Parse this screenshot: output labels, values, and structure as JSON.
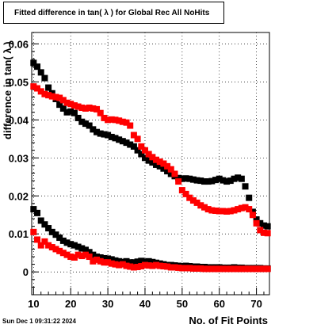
{
  "title": "Fitted difference in tan( λ ) for Global Rec All NoHits",
  "footer_date": "Sun Dec  1 09:31:22 2024",
  "chart_data": {
    "type": "scatter",
    "title": "Fitted difference in tan( λ ) for Global Rec All NoHits",
    "xlabel": "No. of Fit Points",
    "ylabel": "difference in tan( λ )",
    "xlim": [
      9.5,
      73.5
    ],
    "ylim": [
      -0.006,
      0.063
    ],
    "xticks": [
      10,
      20,
      30,
      40,
      50,
      60,
      70
    ],
    "yticks": [
      0,
      0.01,
      0.02,
      0.03,
      0.04,
      0.05,
      0.06
    ],
    "ytick_labels": [
      "0",
      "0.01",
      "0.02",
      "0.03",
      "0.04",
      "0.05",
      "0.06"
    ],
    "grid": true,
    "legend": "none",
    "series": [
      {
        "color": "#000000",
        "marker": "square",
        "x": [
          10,
          11,
          12,
          13,
          14,
          15,
          16,
          17,
          18,
          19,
          20,
          21,
          22,
          23,
          24,
          25,
          26,
          27,
          28,
          29,
          30,
          31,
          32,
          33,
          34,
          35,
          36,
          37,
          38,
          39,
          40,
          41,
          42,
          43,
          44,
          45,
          46,
          47,
          48,
          49,
          50,
          51,
          52,
          53,
          54,
          55,
          56,
          57,
          58,
          59,
          60,
          61,
          62,
          63,
          64,
          65,
          66,
          67,
          68,
          69,
          70,
          71,
          72,
          73
        ],
        "y": [
          0.055,
          0.054,
          0.0525,
          0.051,
          0.0485,
          0.047,
          0.0455,
          0.044,
          0.043,
          0.042,
          0.0422,
          0.0418,
          0.0405,
          0.0395,
          0.039,
          0.0385,
          0.0375,
          0.0368,
          0.0364,
          0.0362,
          0.036,
          0.0355,
          0.0352,
          0.0348,
          0.0344,
          0.034,
          0.0335,
          0.033,
          0.032,
          0.031,
          0.03,
          0.0293,
          0.0288,
          0.0282,
          0.0278,
          0.0272,
          0.0265,
          0.0258,
          0.0252,
          0.0247,
          0.0245,
          0.0246,
          0.0245,
          0.0243,
          0.0241,
          0.024,
          0.0238,
          0.0238,
          0.0239,
          0.0242,
          0.0245,
          0.0241,
          0.0238,
          0.024,
          0.0245,
          0.0248,
          0.0245,
          0.0225,
          0.0195,
          0.0158,
          0.0138,
          0.0128,
          0.0122,
          0.012
        ]
      },
      {
        "color": "#ff0000",
        "marker": "square",
        "x": [
          10,
          11,
          12,
          13,
          14,
          15,
          16,
          17,
          18,
          19,
          20,
          21,
          22,
          23,
          24,
          25,
          26,
          27,
          28,
          29,
          30,
          31,
          32,
          33,
          34,
          35,
          36,
          37,
          38,
          39,
          40,
          41,
          42,
          43,
          44,
          45,
          46,
          47,
          48,
          49,
          50,
          51,
          52,
          53,
          54,
          55,
          56,
          57,
          58,
          59,
          60,
          61,
          62,
          63,
          64,
          65,
          66,
          67,
          68,
          69,
          70,
          71,
          72,
          73
        ],
        "y": [
          0.0488,
          0.0483,
          0.0475,
          0.0468,
          0.0465,
          0.0462,
          0.046,
          0.0458,
          0.0452,
          0.0445,
          0.0442,
          0.0438,
          0.0435,
          0.0432,
          0.043,
          0.0432,
          0.043,
          0.0428,
          0.0418,
          0.0405,
          0.04,
          0.0401,
          0.04,
          0.0398,
          0.0395,
          0.0393,
          0.0385,
          0.036,
          0.035,
          0.033,
          0.032,
          0.031,
          0.0302,
          0.0295,
          0.029,
          0.0285,
          0.0278,
          0.027,
          0.0258,
          0.0238,
          0.0215,
          0.0205,
          0.0195,
          0.0188,
          0.0182,
          0.0175,
          0.017,
          0.0165,
          0.0162,
          0.0161,
          0.016,
          0.016,
          0.0159,
          0.016,
          0.0162,
          0.0165,
          0.0168,
          0.017,
          0.0165,
          0.015,
          0.0128,
          0.011,
          0.0103,
          0.0102
        ]
      },
      {
        "color": "#000000",
        "marker": "square",
        "x": [
          10,
          11,
          12,
          13,
          14,
          15,
          16,
          17,
          18,
          19,
          20,
          21,
          22,
          23,
          24,
          25,
          26,
          27,
          28,
          29,
          30,
          31,
          32,
          33,
          34,
          35,
          36,
          37,
          38,
          39,
          40,
          41,
          42,
          43,
          44,
          45,
          46,
          47,
          48,
          49,
          50,
          51,
          52,
          53,
          54,
          55,
          56,
          57,
          58,
          59,
          60,
          61,
          62,
          63,
          64,
          65,
          66,
          67,
          68,
          69,
          70,
          71,
          72,
          73
        ],
        "y": [
          0.0165,
          0.0155,
          0.0135,
          0.0125,
          0.0115,
          0.0105,
          0.0098,
          0.009,
          0.0082,
          0.0077,
          0.0073,
          0.007,
          0.0066,
          0.0062,
          0.0058,
          0.0052,
          0.0045,
          0.004,
          0.0038,
          0.0036,
          0.0035,
          0.0033,
          0.003,
          0.0028,
          0.0026,
          0.0028,
          0.0025,
          0.0025,
          0.0027,
          0.0029,
          0.0027,
          0.0028,
          0.0026,
          0.0024,
          0.0022,
          0.002,
          0.0018,
          0.0018,
          0.0017,
          0.0016,
          0.0015,
          0.0016,
          0.0015,
          0.0014,
          0.0014,
          0.0013,
          0.0013,
          0.0012,
          0.0012,
          0.0012,
          0.0012,
          0.0011,
          0.0011,
          0.0011,
          0.0012,
          0.0011,
          0.0011,
          0.001,
          0.001,
          0.001,
          0.001,
          0.001,
          0.0009,
          0.0009
        ]
      },
      {
        "color": "#ff0000",
        "marker": "square",
        "x": [
          10,
          11,
          12,
          13,
          14,
          15,
          16,
          17,
          18,
          19,
          20,
          21,
          22,
          23,
          24,
          25,
          26,
          27,
          28,
          29,
          30,
          31,
          32,
          33,
          34,
          35,
          36,
          37,
          38,
          39,
          40,
          41,
          42,
          43,
          44,
          45,
          46,
          47,
          48,
          49,
          50,
          51,
          52,
          53,
          54,
          55,
          56,
          57,
          58,
          59,
          60,
          61,
          62,
          63,
          64,
          65,
          66,
          67,
          68,
          69,
          70,
          71,
          72,
          73
        ],
        "y": [
          0.0105,
          0.0085,
          0.007,
          0.008,
          0.007,
          0.0065,
          0.006,
          0.0055,
          0.005,
          0.0045,
          0.004,
          0.0038,
          0.0045,
          0.0042,
          0.0045,
          0.004,
          0.0028,
          0.0032,
          0.0028,
          0.0025,
          0.0025,
          0.0022,
          0.002,
          0.0018,
          0.002,
          0.0016,
          0.0014,
          0.0012,
          0.0013,
          0.0015,
          0.0018,
          0.0017,
          0.0016,
          0.0018,
          0.0016,
          0.0015,
          0.0014,
          0.0012,
          0.0012,
          0.0011,
          0.001,
          0.001,
          0.001,
          0.0009,
          0.0009,
          0.0009,
          0.0008,
          0.0008,
          0.0008,
          0.0008,
          0.0008,
          0.0008,
          0.0008,
          0.0008,
          0.0008,
          0.0008,
          0.0008,
          0.0008,
          0.0008,
          0.0008,
          0.0008,
          0.0008,
          0.0008,
          0.0008
        ]
      }
    ]
  }
}
